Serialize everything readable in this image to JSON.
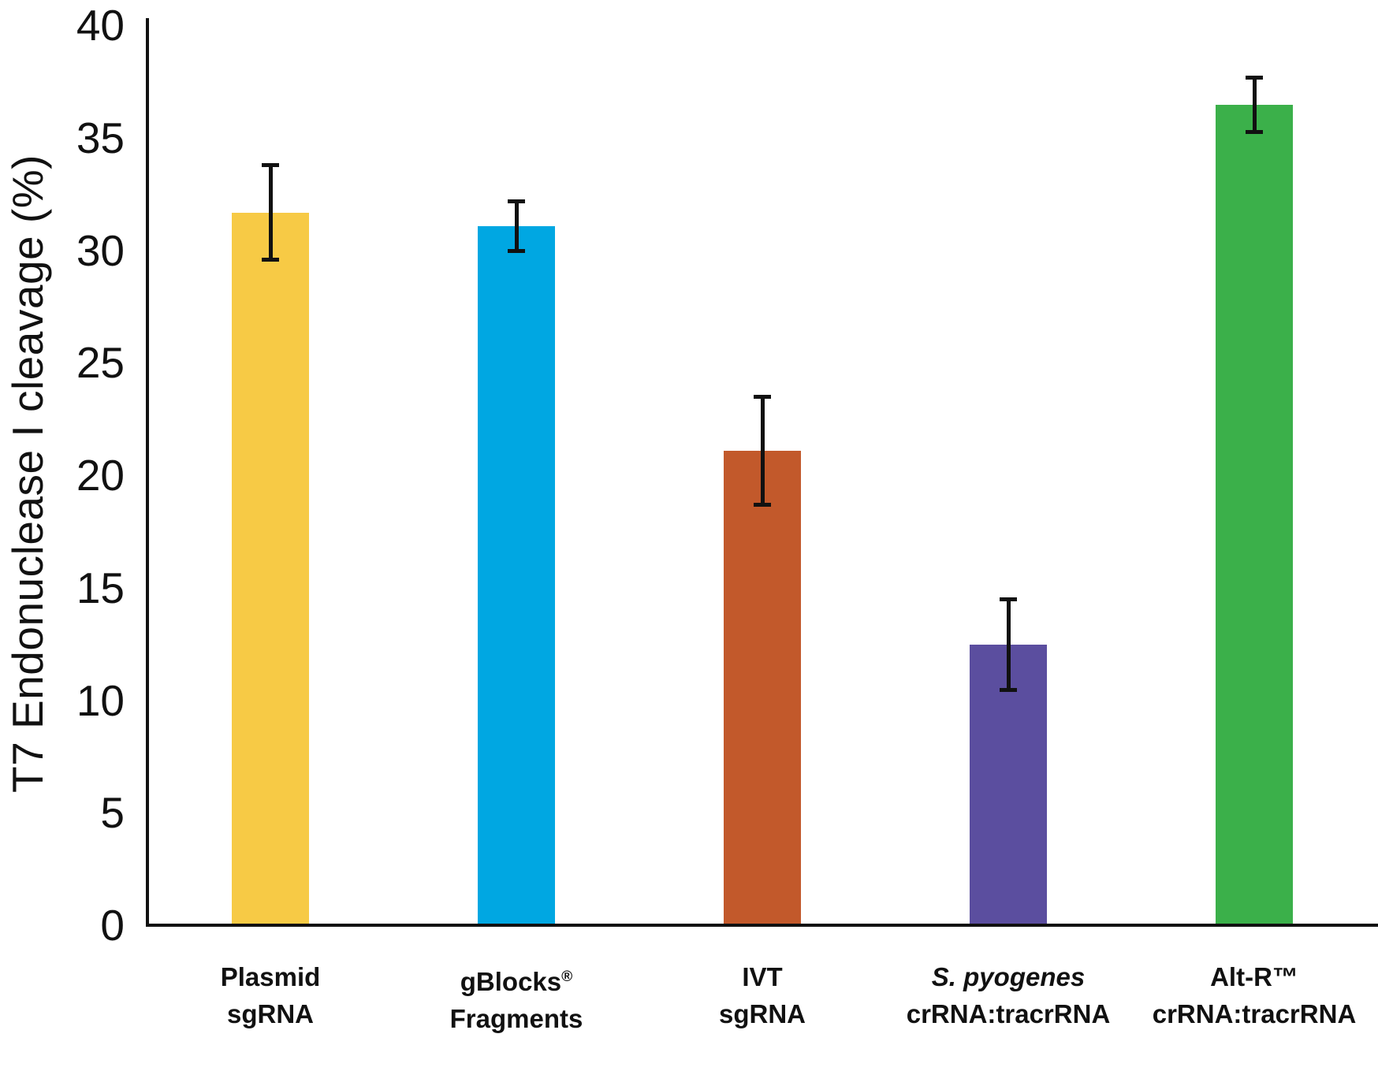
{
  "chart_data": {
    "type": "bar",
    "title": "",
    "xlabel": "",
    "ylabel": "T7 Endonuclease I cleavage (%)",
    "ylim": [
      0,
      40
    ],
    "yticks": [
      0,
      5,
      10,
      15,
      20,
      25,
      30,
      35,
      40
    ],
    "grid": false,
    "legend": "none",
    "categories": [
      "Plasmid sgRNA",
      "gBlocks® Fragments",
      "IVT sgRNA",
      "S. pyogenes crRNA:tracrRNA",
      "Alt-R™ crRNA:tracrRNA"
    ],
    "category_labels": [
      {
        "line1": "Plasmid",
        "line2": "sgRNA",
        "line1_italic": false
      },
      {
        "line1": "gBlocks®",
        "line2": "Fragments",
        "line1_italic": false
      },
      {
        "line1": "IVT",
        "line2": "sgRNA",
        "line1_italic": false
      },
      {
        "line1": "S. pyogenes",
        "line2": "crRNA:tracrRNA",
        "line1_italic": true
      },
      {
        "line1": "Alt-R™",
        "line2": "crRNA:tracrRNA",
        "line1_italic": false
      }
    ],
    "series": [
      {
        "name": "T7 Endonuclease I cleavage (%)",
        "values": [
          31.6,
          31.0,
          21.0,
          12.4,
          36.4
        ],
        "errors": [
          2.1,
          1.1,
          2.4,
          2.0,
          1.2
        ]
      }
    ],
    "bar_colors": [
      "#F7CA45",
      "#00A7E2",
      "#C2592B",
      "#5B4E9F",
      "#3BB04A"
    ],
    "error_bar_color": "#111111",
    "axis_color": "#111111",
    "text_color": "#111111",
    "background": "#FFFFFF"
  }
}
